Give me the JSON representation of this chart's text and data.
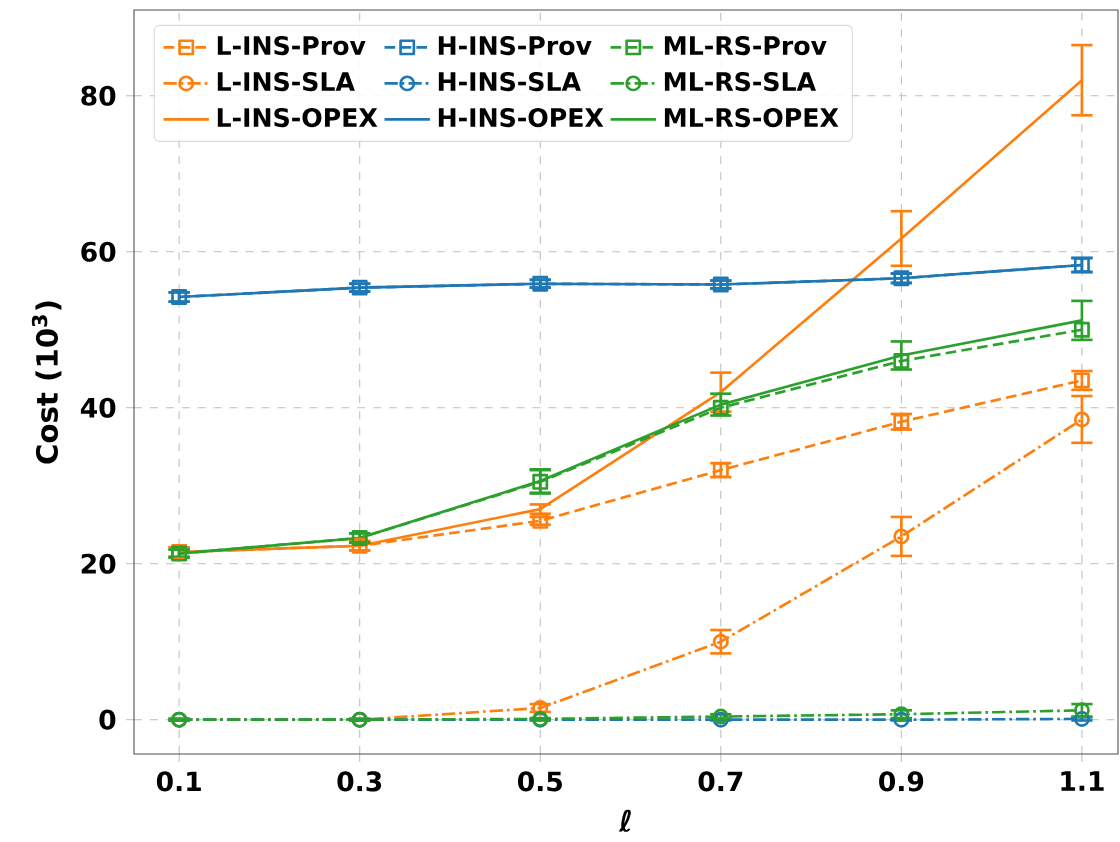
{
  "chart_data": {
    "type": "line",
    "xlabel": "ℓ",
    "ylabel": "Cost (10$^{3}$)",
    "x": [
      0.1,
      0.3,
      0.5,
      0.7,
      0.9,
      1.1
    ],
    "xlim": [
      0.05,
      1.14
    ],
    "ylim": [
      -4.4,
      91
    ],
    "xticks": [
      0.1,
      0.3,
      0.5,
      0.7,
      0.9,
      1.1
    ],
    "yticks": [
      0,
      20,
      40,
      60,
      80
    ],
    "grid": true,
    "legend": "top left",
    "series": [
      {
        "name": "L-INS-Prov",
        "color": "#ff7f0e",
        "marker": "square",
        "line_style": "dashed",
        "values": [
          21.5,
          22.3,
          25.5,
          32,
          38.2,
          43.5
        ],
        "errors": [
          0.6,
          0.6,
          0.5,
          0.9,
          1,
          1.2
        ]
      },
      {
        "name": "L-INS-SLA",
        "color": "#ff7f0e",
        "marker": "circle",
        "line_style": "dashdot",
        "values": [
          0,
          0,
          1.5,
          10,
          23.5,
          38.5
        ],
        "errors": [
          0.1,
          0.1,
          0.5,
          1.5,
          2.5,
          3
        ]
      },
      {
        "name": "L-INS-OPEX",
        "color": "#ff7f0e",
        "marker": "none",
        "line_style": "solid",
        "values": [
          21.5,
          22.3,
          27,
          42,
          61.7,
          82
        ],
        "errors": [
          0.6,
          0.6,
          0.6,
          2.5,
          3.5,
          4.5
        ]
      },
      {
        "name": "H-INS-Prov",
        "color": "#1f77b4",
        "marker": "square",
        "line_style": "dashed",
        "values": [
          54.2,
          55.4,
          55.9,
          55.8,
          56.6,
          58.3
        ],
        "errors": [
          0.6,
          0.5,
          0.5,
          0.5,
          0.6,
          0.9
        ]
      },
      {
        "name": "H-INS-SLA",
        "color": "#1f77b4",
        "marker": "circle",
        "line_style": "dashdot",
        "values": [
          0,
          0,
          0,
          0,
          0,
          0.1
        ],
        "errors": [
          0.1,
          0.1,
          0.1,
          0.1,
          0.1,
          0.2
        ]
      },
      {
        "name": "H-INS-OPEX",
        "color": "#1f77b4",
        "marker": "none",
        "line_style": "solid",
        "values": [
          54.2,
          55.4,
          55.9,
          55.8,
          56.6,
          58.3
        ],
        "errors": [
          0.6,
          0.5,
          0.5,
          0.5,
          0.6,
          0.9
        ]
      },
      {
        "name": "ML-RS-Prov",
        "color": "#2ca02c",
        "marker": "square",
        "line_style": "dashed",
        "values": [
          21.3,
          23.3,
          30.5,
          40,
          46,
          50
        ],
        "errors": [
          0.5,
          0.6,
          1.5,
          null,
          null,
          null
        ]
      },
      {
        "name": "ML-RS-SLA",
        "color": "#2ca02c",
        "marker": "circle",
        "line_style": "dashdot",
        "values": [
          0,
          0,
          0.1,
          0.4,
          0.7,
          1.2
        ],
        "errors": [
          0.1,
          0.1,
          0.1,
          0.3,
          0.5,
          0.8
        ]
      },
      {
        "name": "ML-RS-OPEX",
        "color": "#2ca02c",
        "marker": "none",
        "line_style": "solid",
        "values": [
          21.3,
          23.3,
          30.6,
          40.4,
          46.7,
          51.2
        ],
        "errors": [
          0.5,
          0.6,
          1.5,
          1.4,
          1.8,
          2.5
        ]
      }
    ]
  }
}
